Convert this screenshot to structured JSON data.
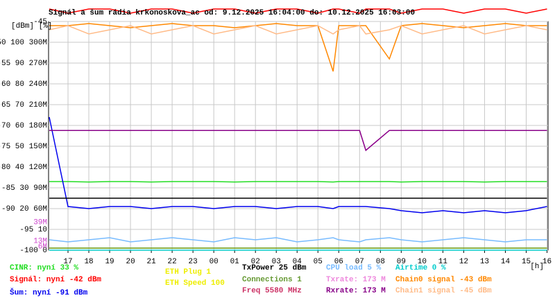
{
  "chart_data": {
    "type": "line",
    "title": "Signál a šum rádia krkonoskova_ac od: 9.12.2025 16:04:00 do: 10.12.2025 16:03:00",
    "y_unit_label": "[dBm] [%]",
    "x_unit_label": "[h]",
    "grid": true,
    "xlim": [
      16.0667,
      40.05
    ],
    "ylim": [
      -100,
      -45
    ],
    "xticks": [
      17,
      18,
      19,
      20,
      21,
      22,
      23,
      {
        "value": 24,
        "label": "00"
      },
      {
        "value": 25,
        "label": "01"
      },
      {
        "value": 26,
        "label": "02"
      },
      {
        "value": 27,
        "label": "03"
      },
      {
        "value": 28,
        "label": "04"
      },
      {
        "value": 29,
        "label": "05"
      },
      {
        "value": 30,
        "label": "06"
      },
      {
        "value": 31,
        "label": "07"
      },
      {
        "value": 32,
        "label": "08"
      },
      {
        "value": 33,
        "label": "09"
      },
      {
        "value": 34,
        "label": "10"
      },
      {
        "value": 35,
        "label": "11"
      },
      {
        "value": 36,
        "label": "12"
      },
      {
        "value": 37,
        "label": "13"
      },
      {
        "value": 38,
        "label": "14"
      },
      {
        "value": 39,
        "label": "15"
      },
      {
        "value": 40,
        "label": "16"
      }
    ],
    "yticks": [
      -45,
      {
        "value": -50,
        "label": "-50 100 300M"
      },
      {
        "value": -55,
        "label": "-55 90 270M"
      },
      {
        "value": -60,
        "label": "-60 80 240M"
      },
      {
        "value": -65,
        "label": "-65 70 210M"
      },
      {
        "value": -70,
        "label": "-70 60 180M"
      },
      {
        "value": -75,
        "label": "-75 50 150M"
      },
      {
        "value": -80,
        "label": "-80 40 120M"
      },
      {
        "value": -85,
        "label": "-85 30 90M"
      },
      {
        "value": -90,
        "label": "-90 20 60M"
      },
      {
        "value": -95,
        "label": "-95 10"
      },
      {
        "value": -100,
        "label": "-100 0"
      }
    ],
    "annotations": [
      {
        "text": "39M",
        "y": -93.3,
        "color": "#cc44cc"
      },
      {
        "text": "13M",
        "y": -97.8,
        "color": "#cc44cc"
      },
      {
        "text": "6M",
        "y": -99.1,
        "color": "#cc44cc"
      }
    ],
    "x": [
      16.1,
      17,
      18,
      19,
      20,
      21,
      22,
      23,
      24,
      25,
      26,
      27,
      28,
      29,
      29.73,
      30,
      31,
      31.3,
      32.43,
      33,
      34,
      35,
      36,
      37,
      38,
      39,
      40
    ],
    "series": [
      {
        "name": "CINR: nyní 33 %",
        "color": "#22dd22",
        "values": [
          -83.5,
          -83.5,
          -83.6,
          -83.5,
          -83.5,
          -83.6,
          -83.5,
          -83.5,
          -83.5,
          -83.6,
          -83.5,
          -83.5,
          -83.5,
          -83.5,
          -83.6,
          -83.5,
          -83.5,
          -83.5,
          -83.5,
          -83.6,
          -83.5,
          -83.5,
          -83.5,
          -83.6,
          -83.5,
          -83.5,
          -83.5
        ]
      },
      {
        "name": "Signál: nyní -42 dBm",
        "color": "#ff0000",
        "values": [
          -42,
          -43,
          -42,
          -42,
          -43,
          -42,
          -42,
          -43,
          -42,
          -42,
          -43,
          -42,
          -42,
          -43,
          -42,
          -42,
          -43,
          -42,
          -42,
          -43,
          -42,
          -42,
          -43,
          -42,
          -42,
          -43,
          -42
        ]
      },
      {
        "name": "Šum: nyní -91 dBm",
        "color": "#0000ee",
        "values": [
          -68,
          -89.5,
          -90,
          -89.5,
          -89.5,
          -90,
          -89.5,
          -89.5,
          -90,
          -89.5,
          -89.5,
          -90,
          -89.5,
          -89.5,
          -90,
          -89.5,
          -89.5,
          -89.5,
          -90,
          -90.5,
          -91,
          -90.5,
          -91,
          -90.5,
          -91,
          -90.5,
          -89.5
        ]
      },
      {
        "name": "ETH Plug 1",
        "color": "#eeee00",
        "values": [
          -99.5,
          -99.5,
          -99.5,
          -99.5,
          -99.5,
          -99.5,
          -99.5,
          -99.5,
          -99.5,
          -99.5,
          -99.5,
          -99.5,
          -99.5,
          -99.5,
          -99.5,
          -99.5,
          -99.5,
          -99.5,
          -99.5,
          -99.5,
          -99.5,
          -99.5,
          -99.5,
          -99.5,
          -99.5,
          -99.5,
          -99.5
        ]
      },
      {
        "name": "ETH Speed 100",
        "color": "#eeee00",
        "values": [
          null,
          null,
          null,
          null,
          null,
          null,
          null,
          null,
          null,
          null,
          null,
          null,
          null,
          null,
          null,
          null,
          null,
          null,
          null,
          null,
          null,
          null,
          null,
          null,
          null,
          null,
          null
        ]
      },
      {
        "name": "TxPower 25 dBm",
        "color": "#000000",
        "values": [
          -87.5,
          -87.5,
          -87.5,
          -87.5,
          -87.5,
          -87.5,
          -87.5,
          -87.5,
          -87.5,
          -87.5,
          -87.5,
          -87.5,
          -87.5,
          -87.5,
          -87.5,
          -87.5,
          -87.5,
          -87.5,
          -87.5,
          -87.5,
          -87.5,
          -87.5,
          -87.5,
          -87.5,
          -87.5,
          -87.5,
          -87.5
        ]
      },
      {
        "name": "Connections 1",
        "color": "#669933",
        "values": [
          -99.5,
          -99.5,
          -99.5,
          -99.5,
          -99.5,
          -99.5,
          -99.5,
          -99.5,
          -99.5,
          -99.5,
          -99.5,
          -99.5,
          -99.5,
          -99.5,
          -99.5,
          -99.5,
          -99.5,
          -99.5,
          -99.5,
          -99.5,
          -99.5,
          -99.5,
          -99.5,
          -99.5,
          -99.5,
          -99.5,
          -99.5
        ]
      },
      {
        "name": "Freq 5580 MHz",
        "color": "#cc3366",
        "values": [
          null,
          null,
          null,
          null,
          null,
          null,
          null,
          null,
          null,
          null,
          null,
          null,
          null,
          null,
          null,
          null,
          null,
          null,
          null,
          null,
          null,
          null,
          null,
          null,
          null,
          null,
          null
        ]
      },
      {
        "name": "CPU load 5 %",
        "color": "#77bbff",
        "values": [
          -97.5,
          -98,
          -97.5,
          -97,
          -98,
          -97.5,
          -97,
          -97.5,
          -98,
          -97,
          -97.5,
          -97,
          -98,
          -97.5,
          -97,
          -97.5,
          -98,
          -97.5,
          -97,
          -97.5,
          -98,
          -97.5,
          -97,
          -97.5,
          -98,
          -97.5,
          -97.5
        ]
      },
      {
        "name": "Txrate: 173 M",
        "color": "#ee88dd",
        "values": [
          -71.2,
          -71.2,
          -71.2,
          -71.2,
          -71.2,
          -71.2,
          -71.2,
          -71.2,
          -71.2,
          -71.2,
          -71.2,
          -71.2,
          -71.2,
          -71.2,
          -71.2,
          -71.2,
          -71.2,
          -76,
          -71.2,
          -71.2,
          -71.2,
          -71.2,
          -71.2,
          -71.2,
          -71.2,
          -71.2,
          -71.2
        ]
      },
      {
        "name": "Rxrate: 173 M",
        "color": "#880088",
        "values": [
          -71.2,
          -71.2,
          -71.2,
          -71.2,
          -71.2,
          -71.2,
          -71.2,
          -71.2,
          -71.2,
          -71.2,
          -71.2,
          -71.2,
          -71.2,
          -71.2,
          -71.2,
          -71.2,
          -71.2,
          -76,
          -71.2,
          -71.2,
          -71.2,
          -71.2,
          -71.2,
          -71.2,
          -71.2,
          -71.2,
          -71.2
        ]
      },
      {
        "name": "Airtime 0 %",
        "color": "#00cccc",
        "values": [
          -100,
          -100,
          -100,
          -100,
          -100,
          -100,
          -100,
          -100,
          -100,
          -100,
          -100,
          -100,
          -100,
          -100,
          -100,
          -100,
          -100,
          -100,
          -100,
          -100,
          -100,
          -100,
          -100,
          -100,
          -100,
          -100,
          -100
        ]
      },
      {
        "name": "Chain0 signal -43 dBm",
        "color": "#ff8800",
        "values": [
          -46,
          -46,
          -45.5,
          -46,
          -46.5,
          -46,
          -45.5,
          -46,
          -46,
          -46.5,
          -46,
          -45.5,
          -46,
          -46,
          -57,
          -46,
          -46,
          -46,
          -54,
          -46,
          -45.5,
          -46,
          -46.5,
          -46,
          -45.5,
          -46,
          -46
        ]
      },
      {
        "name": "Chain1 signal -45 dBm",
        "color": "#ffbb88",
        "values": [
          -47,
          -46,
          -48,
          -47,
          -46,
          -48,
          -47,
          -46,
          -48,
          -47,
          -46,
          -48,
          -47,
          -46,
          -48,
          -47,
          -46,
          -48,
          -47,
          -46,
          -48,
          -47,
          -46,
          -48,
          -47,
          -46,
          -47
        ]
      }
    ]
  }
}
